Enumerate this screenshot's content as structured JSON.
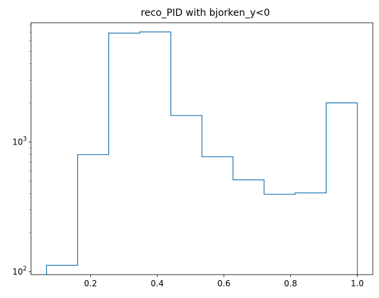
{
  "chart_data": {
    "type": "histogram",
    "title": "reco_PID with bjorken_y<0",
    "xlabel": "",
    "ylabel": "",
    "y_scale": "log",
    "histtype": "step",
    "line_color": "#1f77b4",
    "grid": false,
    "legend": null,
    "xlim": [
      0.0215,
      1.0465
    ],
    "ylim": [
      95,
      8300
    ],
    "bin_edges": [
      0.068,
      0.1612,
      0.2544,
      0.3476,
      0.4408,
      0.534,
      0.6272,
      0.7204,
      0.8136,
      0.9068,
      1.0
    ],
    "counts": [
      112,
      800,
      6900,
      7050,
      1600,
      770,
      510,
      395,
      405,
      2000
    ],
    "x_ticks": [
      {
        "value": 0.2,
        "label": "0.2"
      },
      {
        "value": 0.4,
        "label": "0.4"
      },
      {
        "value": 0.6,
        "label": "0.6"
      },
      {
        "value": 0.8,
        "label": "0.8"
      },
      {
        "value": 1.0,
        "label": "1.0"
      }
    ],
    "y_ticks_major": [
      {
        "value": 100,
        "base": "10",
        "exp": "2"
      },
      {
        "value": 1000,
        "base": "10",
        "exp": "3"
      }
    ],
    "y_ticks_minor": [
      200,
      300,
      400,
      500,
      600,
      700,
      800,
      900,
      2000,
      3000,
      4000,
      5000,
      6000,
      7000,
      8000
    ]
  }
}
